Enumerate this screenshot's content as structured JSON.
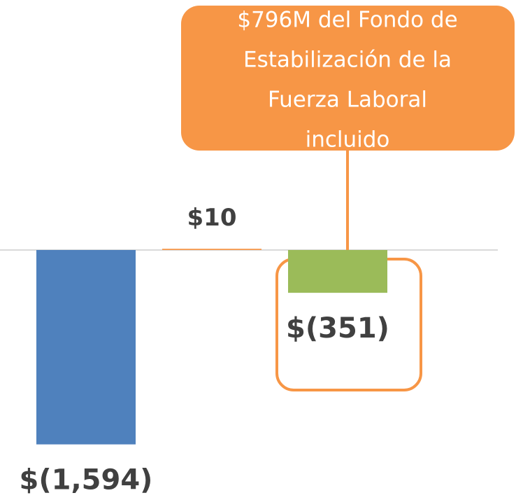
{
  "chart_data": {
    "type": "bar",
    "categories": [
      null,
      null,
      null
    ],
    "values": [
      -1594,
      10,
      -351
    ],
    "value_labels": [
      "$(1,594)",
      "$10",
      "$(351)"
    ],
    "colors": [
      "#4f81bd",
      "#f79646",
      "#9bbb59"
    ],
    "ylim": [
      -2050,
      2050
    ],
    "annotation": [
      "$796M del Fondo de",
      "Estabilización de la",
      "Fuerza Laboral",
      "incluido"
    ]
  }
}
